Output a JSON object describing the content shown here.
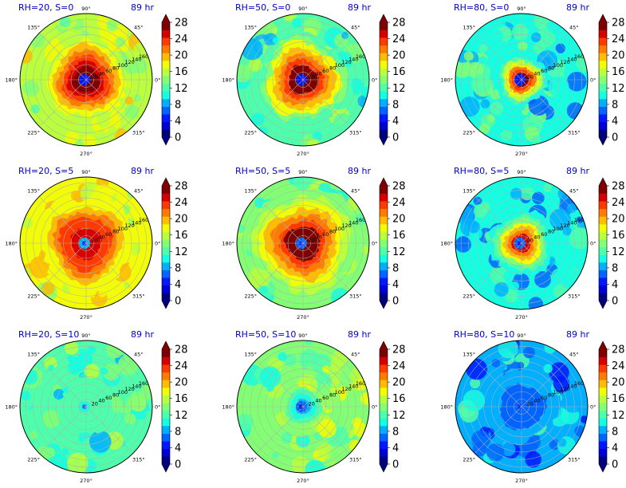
{
  "figure": {
    "panels": [
      {
        "title": "RH=20, S=0",
        "time": "89 hr"
      },
      {
        "title": "RH=50, S=0",
        "time": "89 hr"
      },
      {
        "title": "RH=80, S=0",
        "time": "89 hr"
      },
      {
        "title": "RH=20, S=5",
        "time": "89 hr"
      },
      {
        "title": "RH=50, S=5",
        "time": "89 hr"
      },
      {
        "title": "RH=80, S=5",
        "time": "89 hr"
      },
      {
        "title": "RH=20, S=10",
        "time": "89 hr"
      },
      {
        "title": "RH=50, S=10",
        "time": "89 hr"
      },
      {
        "title": "RH=80, S=10",
        "time": "89 hr"
      }
    ],
    "angle_labels": [
      "0°",
      "45°",
      "90°",
      "135°",
      "180°",
      "225°",
      "270°",
      "315°"
    ],
    "radial_labels": [
      "20",
      "40",
      "60",
      "80",
      "100",
      "120",
      "140",
      "160"
    ],
    "colorbar_ticks": [
      "0",
      "4",
      "8",
      "12",
      "16",
      "20",
      "24",
      "28"
    ]
  },
  "chart_data": {
    "type": "heatmap",
    "projection": "polar",
    "layout": "3x3 grid",
    "rows": [
      "S=0",
      "S=5",
      "S=10"
    ],
    "columns": [
      "RH=20",
      "RH=50",
      "RH=80"
    ],
    "angle_ticks_deg": [
      0,
      45,
      90,
      135,
      180,
      225,
      270,
      315
    ],
    "radial_ticks": [
      20,
      40,
      60,
      80,
      100,
      120,
      140,
      160
    ],
    "rlim": [
      0,
      175
    ],
    "grid": true,
    "colorbar": {
      "colormap": "jet",
      "levels": [
        0,
        2,
        4,
        6,
        8,
        10,
        12,
        14,
        16,
        18,
        20,
        22,
        24,
        26,
        28
      ],
      "ticks": [
        0,
        4,
        8,
        12,
        16,
        20,
        24,
        28
      ],
      "extend": "both",
      "colors": [
        "#00007f",
        "#0000d6",
        "#0018ff",
        "#0064ff",
        "#00b0ff",
        "#14fee2",
        "#4dffaa",
        "#83ff73",
        "#b9ff3d",
        "#f1fc06",
        "#ffbc00",
        "#ff7b00",
        "#ff3a00",
        "#d60000",
        "#7f0000"
      ],
      "under_color": "#00007f",
      "over_color": "#7f0000"
    },
    "panels": [
      {
        "rh": 20,
        "s": 0,
        "core_value": 28,
        "core_radius": 100,
        "background_value": 17,
        "center_value": 5
      },
      {
        "rh": 50,
        "s": 0,
        "core_value": 28,
        "core_radius": 110,
        "background_value": 13,
        "center_value": 5
      },
      {
        "rh": 80,
        "s": 0,
        "core_value": 28,
        "core_radius": 55,
        "background_value": 11,
        "center_value": 5
      },
      {
        "rh": 20,
        "s": 5,
        "core_value": 27,
        "core_radius": 115,
        "background_value": 18,
        "center_value": 8
      },
      {
        "rh": 50,
        "s": 5,
        "core_value": 28,
        "core_radius": 130,
        "background_value": 14,
        "center_value": 7
      },
      {
        "rh": 80,
        "s": 5,
        "core_value": 26,
        "core_radius": 70,
        "background_value": 10,
        "center_value": 6
      },
      {
        "rh": 20,
        "s": 10,
        "core_value": 12,
        "core_radius": 60,
        "background_value": 13,
        "center_value": 10
      },
      {
        "rh": 50,
        "s": 10,
        "core_value": 8,
        "core_radius": 40,
        "background_value": 15,
        "center_value": 6
      },
      {
        "rh": 80,
        "s": 10,
        "core_value": 6,
        "core_radius": 80,
        "background_value": 9,
        "center_value": 7
      }
    ]
  }
}
